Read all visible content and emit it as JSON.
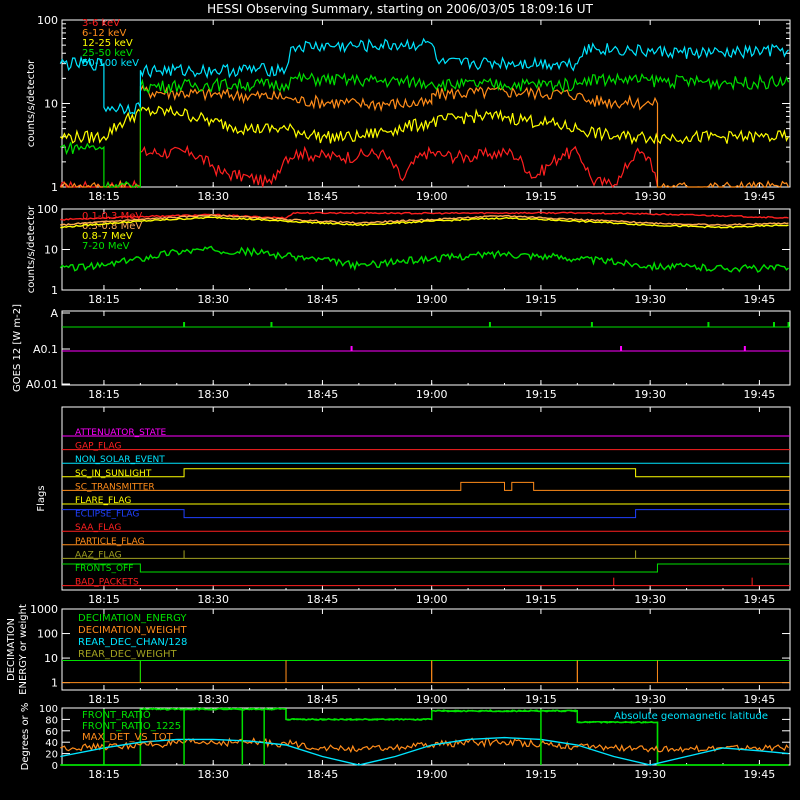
{
  "title": "HESSI Observing Summary, starting on 2006/03/05 18:09:16 UT",
  "colors": {
    "background": "#000000",
    "axis": "#ffffff",
    "red": "#ff2020",
    "orange": "#ff8c1a",
    "yellow": "#ffff00",
    "green": "#00e000",
    "cyan": "#00e5ff",
    "magenta": "#ff00ff",
    "blue": "#2040ff",
    "olive": "#a0a020"
  },
  "time_ticks": [
    "18:15",
    "18:30",
    "18:45",
    "19:00",
    "19:15",
    "19:30",
    "19:45"
  ],
  "chart_data": [
    {
      "id": "panel1",
      "type": "line",
      "ylabel": "counts/s/detector",
      "yscale": "log",
      "ylim": [
        1,
        100
      ],
      "ytick_labels": [
        "1",
        "10",
        "100"
      ],
      "grid": false,
      "legend_position": "top-left",
      "x_range_hours": [
        18.154,
        19.82
      ],
      "series": [
        {
          "name": "3-6 keV",
          "color": "#ff2020",
          "x": [
            "18:09",
            "18:15",
            "18:15",
            "18:20",
            "18:20",
            "18:27",
            "18:31",
            "18:35",
            "18:38",
            "18:40",
            "18:42",
            "18:44",
            "18:47",
            "18:50",
            "18:53",
            "18:56",
            "18:59",
            "19:02",
            "19:05",
            "19:08",
            "19:11",
            "19:14",
            "19:16",
            "19:18",
            "19:20",
            "19:22",
            "19:24",
            "19:26",
            "19:28",
            "19:30",
            "19:31"
          ],
          "y": [
            1,
            1,
            1,
            1,
            2.6,
            2.6,
            1.5,
            1.3,
            1.1,
            2.3,
            2.6,
            2.4,
            2.3,
            2.4,
            2.6,
            1.2,
            2.6,
            2.4,
            2.3,
            2.5,
            2.6,
            1.3,
            1.8,
            2.5,
            2.6,
            1.2,
            1.1,
            1.3,
            2.6,
            2.2,
            1
          ]
        },
        {
          "name": "6-12 keV",
          "color": "#ff8c1a",
          "x": [
            "18:09",
            "18:20",
            "18:20",
            "18:30",
            "18:40",
            "18:41",
            "18:50",
            "19:00",
            "19:00",
            "19:10",
            "19:20",
            "19:21",
            "19:30",
            "19:31",
            "19:31",
            "19:40",
            "19:49"
          ],
          "y": [
            1,
            1,
            14,
            13,
            12,
            11,
            10,
            10,
            13,
            14,
            13,
            11,
            10,
            10,
            1,
            1,
            1
          ]
        },
        {
          "name": "12-25 keV",
          "color": "#ffff00",
          "x": [
            "18:09",
            "18:15",
            "18:20",
            "18:25",
            "18:30",
            "18:35",
            "18:40",
            "18:45",
            "18:50",
            "18:55",
            "19:00",
            "19:05",
            "19:10",
            "19:15",
            "19:20",
            "19:25",
            "19:30",
            "19:35",
            "19:40",
            "19:45",
            "19:49"
          ],
          "y": [
            4,
            4,
            8,
            8,
            6,
            5,
            5,
            4,
            4,
            5,
            6,
            7,
            7,
            6,
            5,
            4,
            4,
            4,
            4,
            4,
            4
          ]
        },
        {
          "name": "25-50 keV",
          "color": "#00e000",
          "x": [
            "18:09",
            "18:15",
            "18:15",
            "18:20",
            "18:20",
            "18:30",
            "18:40",
            "18:41",
            "18:50",
            "19:00",
            "19:01",
            "19:10",
            "19:20",
            "19:21",
            "19:30",
            "19:40",
            "19:49"
          ],
          "y": [
            3,
            3,
            1,
            1,
            16,
            17,
            17,
            20,
            19,
            18,
            17,
            17,
            17,
            20,
            19,
            18,
            18
          ]
        },
        {
          "name": "50-100 keV",
          "color": "#00e5ff",
          "x": [
            "18:09",
            "18:15",
            "18:15",
            "18:20",
            "18:20",
            "18:30",
            "18:40",
            "18:41",
            "18:50",
            "19:00",
            "19:01",
            "19:10",
            "19:20",
            "19:21",
            "19:30",
            "19:40",
            "19:49"
          ],
          "y": [
            30,
            30,
            9,
            9,
            25,
            25,
            26,
            48,
            49,
            52,
            30,
            31,
            30,
            47,
            42,
            40,
            44
          ]
        }
      ]
    },
    {
      "id": "panel2",
      "type": "line",
      "ylabel": "counts/s/detector",
      "yscale": "log",
      "ylim": [
        1,
        100
      ],
      "ytick_labels": [
        "1",
        "10",
        "100"
      ],
      "grid": false,
      "legend_position": "top-left",
      "x_range_hours": [
        18.154,
        19.82
      ],
      "series": [
        {
          "name": "0.1-0.3 MeV",
          "color": "#ff2020",
          "x": [
            "18:09",
            "18:20",
            "18:30",
            "18:35",
            "18:40",
            "18:41",
            "18:50",
            "19:00",
            "19:10",
            "19:15",
            "19:20",
            "19:21",
            "19:30",
            "19:40",
            "19:49"
          ],
          "y": [
            55,
            65,
            72,
            65,
            60,
            80,
            80,
            78,
            80,
            80,
            80,
            80,
            75,
            68,
            60
          ]
        },
        {
          "name": "0.3-0.8 MeV",
          "color": "#ffaa55",
          "x": [
            "18:09",
            "18:20",
            "18:30",
            "18:40",
            "18:50",
            "19:00",
            "19:10",
            "19:20",
            "19:30",
            "19:40",
            "19:49"
          ],
          "y": [
            40,
            55,
            70,
            55,
            45,
            55,
            68,
            55,
            45,
            40,
            45
          ]
        },
        {
          "name": "0.8-7 MeV",
          "color": "#ffff00",
          "x": [
            "18:09",
            "18:20",
            "18:30",
            "18:40",
            "18:50",
            "19:00",
            "19:10",
            "19:20",
            "19:30",
            "19:40",
            "19:49"
          ],
          "y": [
            35,
            50,
            62,
            50,
            40,
            50,
            60,
            50,
            40,
            35,
            40
          ]
        },
        {
          "name": "7-20 MeV",
          "color": "#00e000",
          "x": [
            "18:09",
            "18:15",
            "18:20",
            "18:25",
            "18:30",
            "18:35",
            "18:40",
            "18:50",
            "19:00",
            "19:10",
            "19:20",
            "19:30",
            "19:40",
            "19:49"
          ],
          "y": [
            3.5,
            4,
            6,
            9,
            10,
            9,
            7,
            4,
            6,
            8,
            6,
            4,
            3.5,
            3.5
          ]
        }
      ]
    },
    {
      "id": "panel3",
      "type": "line",
      "ylabel": "GOES 12 [W m-2]",
      "yscale": "log",
      "ytick_labels": [
        "A",
        "A0.1",
        "A0.01"
      ],
      "grid": false,
      "x_range_hours": [
        18.154,
        19.82
      ],
      "series": [
        {
          "color": "#00e000",
          "level": "A",
          "spikes": [
            "18:26",
            "18:38",
            "19:08",
            "19:22",
            "19:38",
            "19:47",
            "19:49"
          ]
        },
        {
          "color": "#ff00ff",
          "level": "A0.1",
          "spikes": [
            "18:49",
            "19:26",
            "19:43"
          ]
        }
      ]
    },
    {
      "id": "panel4",
      "type": "line",
      "ylabel": "Flags",
      "grid": false,
      "x_range_hours": [
        18.154,
        19.82
      ],
      "flags": [
        {
          "label": "ATTENUATOR_STATE",
          "color": "#ff00ff",
          "states": [
            [
              "18:09",
              0
            ]
          ]
        },
        {
          "label": "GAP_FLAG",
          "color": "#ff2020",
          "states": [
            [
              "18:09",
              0
            ]
          ]
        },
        {
          "label": "NON_SOLAR_EVENT",
          "color": "#00e5ff",
          "states": [
            [
              "18:09",
              0
            ]
          ]
        },
        {
          "label": "SC_IN_SUNLIGHT",
          "color": "#ffff00",
          "states": [
            [
              "18:09",
              0
            ],
            [
              "18:26",
              1
            ],
            [
              "19:28",
              0
            ]
          ]
        },
        {
          "label": "SC_TRANSMITTER",
          "color": "#ff8c1a",
          "states": [
            [
              "18:09",
              0
            ],
            [
              "19:04",
              1
            ],
            [
              "19:10",
              0
            ],
            [
              "19:11",
              1
            ],
            [
              "19:14",
              0
            ]
          ]
        },
        {
          "label": "FLARE_FLAG",
          "color": "#ffff00",
          "states": [
            [
              "18:09",
              0
            ]
          ]
        },
        {
          "label": "ECLIPSE_FLAG",
          "color": "#2040ff",
          "states": [
            [
              "18:09",
              1
            ],
            [
              "18:26",
              0
            ],
            [
              "19:28",
              1
            ]
          ]
        },
        {
          "label": "SAA_FLAG",
          "color": "#ff2020",
          "states": [
            [
              "18:09",
              0
            ]
          ]
        },
        {
          "label": "PARTICLE_FLAG",
          "color": "#ff8c1a",
          "states": [
            [
              "18:09",
              0
            ]
          ]
        },
        {
          "label": "AAZ_FLAG",
          "color": "#a0a020",
          "states": [
            [
              "18:09",
              0
            ],
            [
              "18:26",
              1
            ],
            [
              "18:26",
              0
            ],
            [
              "19:28",
              1
            ],
            [
              "19:28",
              0
            ]
          ]
        },
        {
          "label": "FRONTS_OFF",
          "color": "#00e000",
          "states": [
            [
              "18:09",
              1
            ],
            [
              "18:20",
              0
            ],
            [
              "19:31",
              1
            ]
          ]
        },
        {
          "label": "BAD_PACKETS",
          "color": "#ff2020",
          "states": [
            [
              "18:09",
              0
            ],
            [
              "19:25",
              1
            ],
            [
              "19:25",
              0
            ],
            [
              "19:44",
              1
            ],
            [
              "19:44",
              0
            ]
          ]
        }
      ]
    },
    {
      "id": "panel5",
      "type": "line",
      "ylabel": "DECIMATION ENERGY or weight",
      "yscale": "log",
      "ylim": [
        0.5,
        1000
      ],
      "ytick_labels": [
        "1",
        "10",
        "100",
        "1000"
      ],
      "grid": false,
      "legend_position": "top-left",
      "x_range_hours": [
        18.154,
        19.82
      ],
      "series": [
        {
          "name": "DECIMATION_ENERGY",
          "color": "#00e000",
          "x": [
            "18:09",
            "18:20",
            "18:20",
            "18:40",
            "18:40",
            "19:00",
            "19:00",
            "19:20",
            "19:20",
            "19:31",
            "19:31",
            "19:49"
          ],
          "y": [
            8,
            8,
            8,
            8,
            8,
            8,
            8,
            8,
            8,
            8,
            8,
            8
          ]
        },
        {
          "name": "DECIMATION_WEIGHT",
          "color": "#ff8c1a",
          "x": [
            "18:09",
            "18:20",
            "18:20",
            "18:40",
            "18:40",
            "19:00",
            "19:00",
            "19:20",
            "19:20",
            "19:31",
            "19:31",
            "19:49"
          ],
          "y": [
            1,
            1,
            1,
            1,
            1,
            1,
            1,
            1,
            1,
            1,
            1,
            1
          ]
        },
        {
          "name": "REAR_DEC_CHAN/128",
          "color": "#00e5ff",
          "x": [],
          "y": []
        },
        {
          "name": "REAR_DEC_WEIGHT",
          "color": "#a0a020",
          "x": [],
          "y": []
        }
      ],
      "segments": [
        [
          "18:20",
          "18:40"
        ],
        [
          "18:40",
          "19:00"
        ],
        [
          "19:00",
          "19:20"
        ],
        [
          "19:20",
          "19:31"
        ]
      ]
    },
    {
      "id": "panel6",
      "type": "line",
      "ylabel": "Degrees or %",
      "ylim": [
        0,
        100
      ],
      "ytick_labels": [
        "0",
        "20",
        "40",
        "60",
        "80",
        "100"
      ],
      "grid": false,
      "legend_position": "top-left",
      "annotation": "Absolute geomagnetic latitude",
      "x_range_hours": [
        18.154,
        19.82
      ],
      "series": [
        {
          "name": "FRONT_RATIO",
          "color": "#00e000",
          "x": [
            "18:09",
            "18:20",
            "18:20",
            "18:40",
            "18:40",
            "19:00",
            "19:00",
            "19:20",
            "19:20",
            "19:31",
            "19:31",
            "19:49"
          ],
          "y": [
            0,
            0,
            98,
            98,
            80,
            80,
            95,
            95,
            75,
            75,
            0,
            0
          ]
        },
        {
          "name": "FRONT_RATIO_1225",
          "color": "#00e000",
          "x": [
            "18:09",
            "18:20",
            "18:20",
            "18:40",
            "18:40",
            "19:00",
            "19:00",
            "19:20",
            "19:20",
            "19:31",
            "19:31",
            "19:49"
          ],
          "y": [
            0,
            0,
            98,
            98,
            80,
            80,
            95,
            95,
            75,
            75,
            0,
            0
          ]
        },
        {
          "name": "MAX_DET_VS_TOT",
          "color": "#ff8c1a",
          "x": [
            "18:09",
            "18:15",
            "18:20",
            "18:25",
            "18:30",
            "18:35",
            "18:40",
            "18:45",
            "18:50",
            "18:55",
            "19:00",
            "19:05",
            "19:10",
            "19:15",
            "19:20",
            "19:25",
            "19:30",
            "19:35",
            "19:40",
            "19:45",
            "19:49"
          ],
          "y": [
            30,
            32,
            35,
            38,
            40,
            40,
            38,
            30,
            28,
            30,
            35,
            40,
            40,
            38,
            32,
            30,
            28,
            28,
            30,
            30,
            30
          ]
        },
        {
          "name": "Absolute geomagnetic latitude",
          "color": "#00e5ff",
          "x": [
            "18:09",
            "18:15",
            "18:20",
            "18:25",
            "18:30",
            "18:35",
            "18:40",
            "18:45",
            "18:50",
            "18:55",
            "19:00",
            "19:05",
            "19:10",
            "19:15",
            "19:20",
            "19:25",
            "19:30",
            "19:35",
            "19:40",
            "19:45",
            "19:49"
          ],
          "y": [
            15,
            30,
            40,
            45,
            45,
            42,
            35,
            15,
            0,
            15,
            35,
            45,
            48,
            45,
            35,
            15,
            0,
            15,
            30,
            25,
            20
          ]
        }
      ]
    }
  ]
}
